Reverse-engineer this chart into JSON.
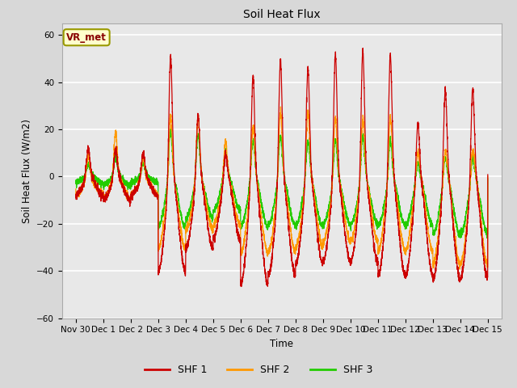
{
  "title": "Soil Heat Flux",
  "ylabel": "Soil Heat Flux (W/m2)",
  "xlabel": "Time",
  "ylim": [
    -60,
    65
  ],
  "yticks": [
    -60,
    -40,
    -20,
    0,
    20,
    40,
    60
  ],
  "plot_bg": "#e8e8e8",
  "fig_bg": "#d8d8d8",
  "grid_color": "white",
  "shf1_color": "#cc0000",
  "shf2_color": "#ff9900",
  "shf3_color": "#22cc00",
  "legend_labels": [
    "SHF 1",
    "SHF 2",
    "SHF 3"
  ],
  "annotation_text": "VR_met",
  "annotation_bg": "#ffffcc",
  "annotation_border": "#999900",
  "linewidth": 0.9,
  "tick_labels": [
    "Nov 30",
    "Dec 1",
    "Dec 2",
    "Dec 3",
    "Dec 4",
    "Dec 5",
    "Dec 6",
    "Dec 7",
    "Dec 8",
    "Dec 9",
    "Dec 10",
    "Dec 11",
    "Dec 12",
    "Dec 13",
    "Dec 14",
    "Dec 15"
  ]
}
